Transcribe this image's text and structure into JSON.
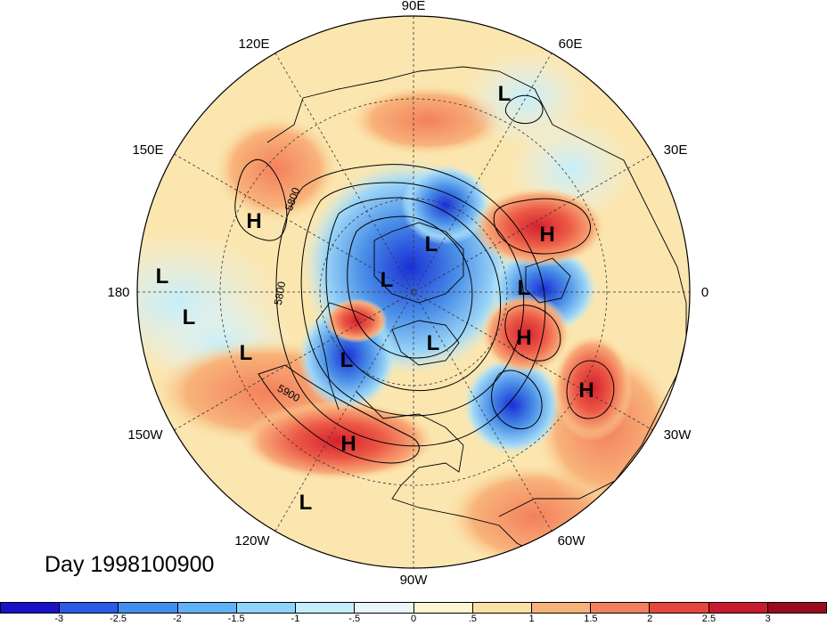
{
  "date_label": "Day 1998100900",
  "longitude_labels": [
    {
      "text": "90E"
    },
    {
      "text": "60E"
    },
    {
      "text": "30E"
    },
    {
      "text": "0"
    },
    {
      "text": "30W"
    },
    {
      "text": "60W"
    },
    {
      "text": "90W"
    },
    {
      "text": "120W"
    },
    {
      "text": "150W"
    },
    {
      "text": "180"
    },
    {
      "text": "150E"
    },
    {
      "text": "120E"
    }
  ],
  "pressure_centers": [
    {
      "type": "L"
    },
    {
      "type": "H"
    },
    {
      "type": "L"
    },
    {
      "type": "L"
    },
    {
      "type": "L"
    },
    {
      "type": "L"
    },
    {
      "type": "L"
    },
    {
      "type": "H"
    },
    {
      "type": "L"
    },
    {
      "type": "L"
    },
    {
      "type": "H"
    },
    {
      "type": "H"
    },
    {
      "type": "L"
    },
    {
      "type": "H"
    },
    {
      "type": "L"
    }
  ],
  "contour_labels": [
    "5800",
    "5800",
    "5900"
  ],
  "colorbar": {
    "colors": [
      "#1a10c8",
      "#2a5ae6",
      "#3f8ef0",
      "#5fb2f6",
      "#8cd4fa",
      "#c4eefb",
      "#e8f6fb",
      "#fdf5d2",
      "#fbe0a3",
      "#f8b37a",
      "#f3805c",
      "#e8463d",
      "#c81b2e",
      "#9b0a1f"
    ],
    "ticks": [
      "-3",
      "-2.5",
      "-2",
      "-1.5",
      "-1",
      "-.5",
      "0",
      ".5",
      "1",
      "1.5",
      "2",
      "2.5",
      "3"
    ]
  }
}
